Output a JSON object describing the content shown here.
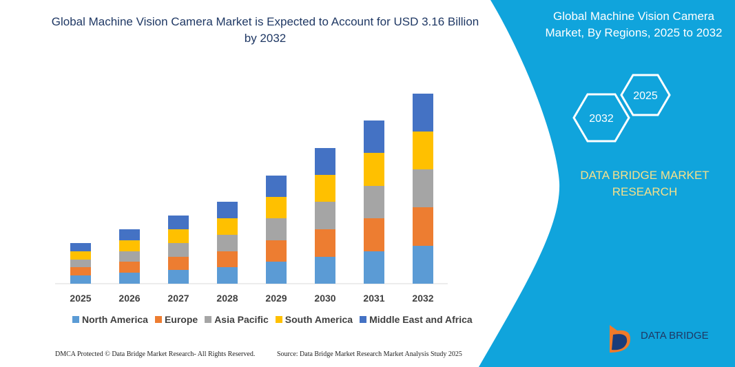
{
  "chart_data": {
    "type": "stacked-bar",
    "title": "Global Machine Vision Camera Market is Expected to Account for USD 3.16 Billion by 2032",
    "categories": [
      "2025",
      "2026",
      "2027",
      "2028",
      "2029",
      "2030",
      "2031",
      "2032"
    ],
    "series": [
      {
        "name": "North America",
        "color": "#5b9bd5",
        "values": [
          12,
          16,
          20,
          24,
          32,
          39,
          47,
          55
        ]
      },
      {
        "name": "Europe",
        "color": "#ed7d31",
        "values": [
          12,
          16,
          19,
          23,
          31,
          40,
          48,
          56
        ]
      },
      {
        "name": "Asia Pacific",
        "color": "#a5a5a5",
        "values": [
          11,
          15,
          20,
          24,
          32,
          40,
          47,
          55
        ]
      },
      {
        "name": "South America",
        "color": "#ffc000",
        "values": [
          12,
          16,
          20,
          24,
          31,
          39,
          48,
          55
        ]
      },
      {
        "name": "Middle East and Africa",
        "color": "#4472c4",
        "values": [
          12,
          16,
          20,
          24,
          31,
          39,
          47,
          55
        ]
      }
    ],
    "ylim": [
      0,
      300
    ]
  },
  "panel": {
    "title": "Global Machine Vision Camera Market, By Regions, 2025 to 2032",
    "hex_labels": [
      "2032",
      "2025"
    ],
    "brand": "DATA BRIDGE MARKET RESEARCH",
    "logo": "DATA BRIDGE"
  },
  "footer": {
    "left": "DMCA Protected © Data Bridge Market Research-  All Rights Reserved.",
    "right": "Source: Data Bridge Market Research  Market Analysis Study 2025"
  }
}
